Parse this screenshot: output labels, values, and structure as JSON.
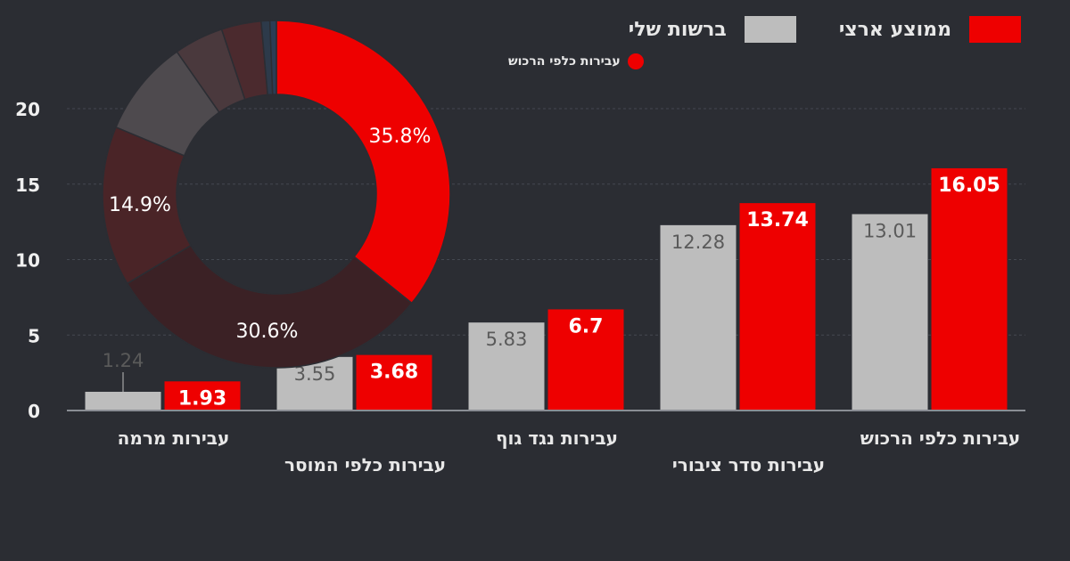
{
  "legend": {
    "items": [
      {
        "label": "ממוצע ארצי",
        "color": "#ee0000"
      },
      {
        "label": "ברשות שלי",
        "color": "#bdbdbd"
      }
    ]
  },
  "donut_legend": {
    "label": "עבירות כלפי הרכוש",
    "color": "#ee0000"
  },
  "chart_data": [
    {
      "type": "bar",
      "categories": [
        "עבירות מרמה",
        "עבירות כלפי המוסר",
        "עבירות נגד גוף",
        "עבירות סדר ציבורי",
        "עבירות כלפי הרכוש"
      ],
      "series": [
        {
          "name": "ברשות שלי",
          "color": "#bdbdbd",
          "values": [
            1.24,
            3.55,
            5.83,
            12.28,
            13.01
          ]
        },
        {
          "name": "ממוצע ארצי",
          "color": "#ee0000",
          "values": [
            1.93,
            3.68,
            6.7,
            13.74,
            16.05
          ]
        }
      ],
      "ylim": [
        0,
        20
      ],
      "yticks": [
        0,
        5,
        10,
        15,
        20
      ],
      "grid": true,
      "legend_position": "top-right"
    },
    {
      "type": "pie",
      "donut": true,
      "slices": [
        {
          "name": "עבירות כלפי הרכוש",
          "value": 35.8,
          "label": "35.8%",
          "color": "#ee0000"
        },
        {
          "name": "",
          "value": 30.6,
          "label": "30.6%",
          "color": "#3b2125"
        },
        {
          "name": "",
          "value": 14.9,
          "label": "14.9%",
          "color": "#4a2427"
        },
        {
          "name": "",
          "value": 9.0,
          "label": "",
          "color": "#4e4a4e"
        },
        {
          "name": "",
          "value": 4.6,
          "label": "",
          "color": "#4a393d"
        },
        {
          "name": "",
          "value": 3.7,
          "label": "",
          "color": "#4b2a2e"
        },
        {
          "name": "",
          "value": 0.8,
          "label": "",
          "color": "#2d3a4a"
        },
        {
          "name": "",
          "value": 0.6,
          "label": "",
          "color": "#2b3d55"
        }
      ]
    }
  ]
}
